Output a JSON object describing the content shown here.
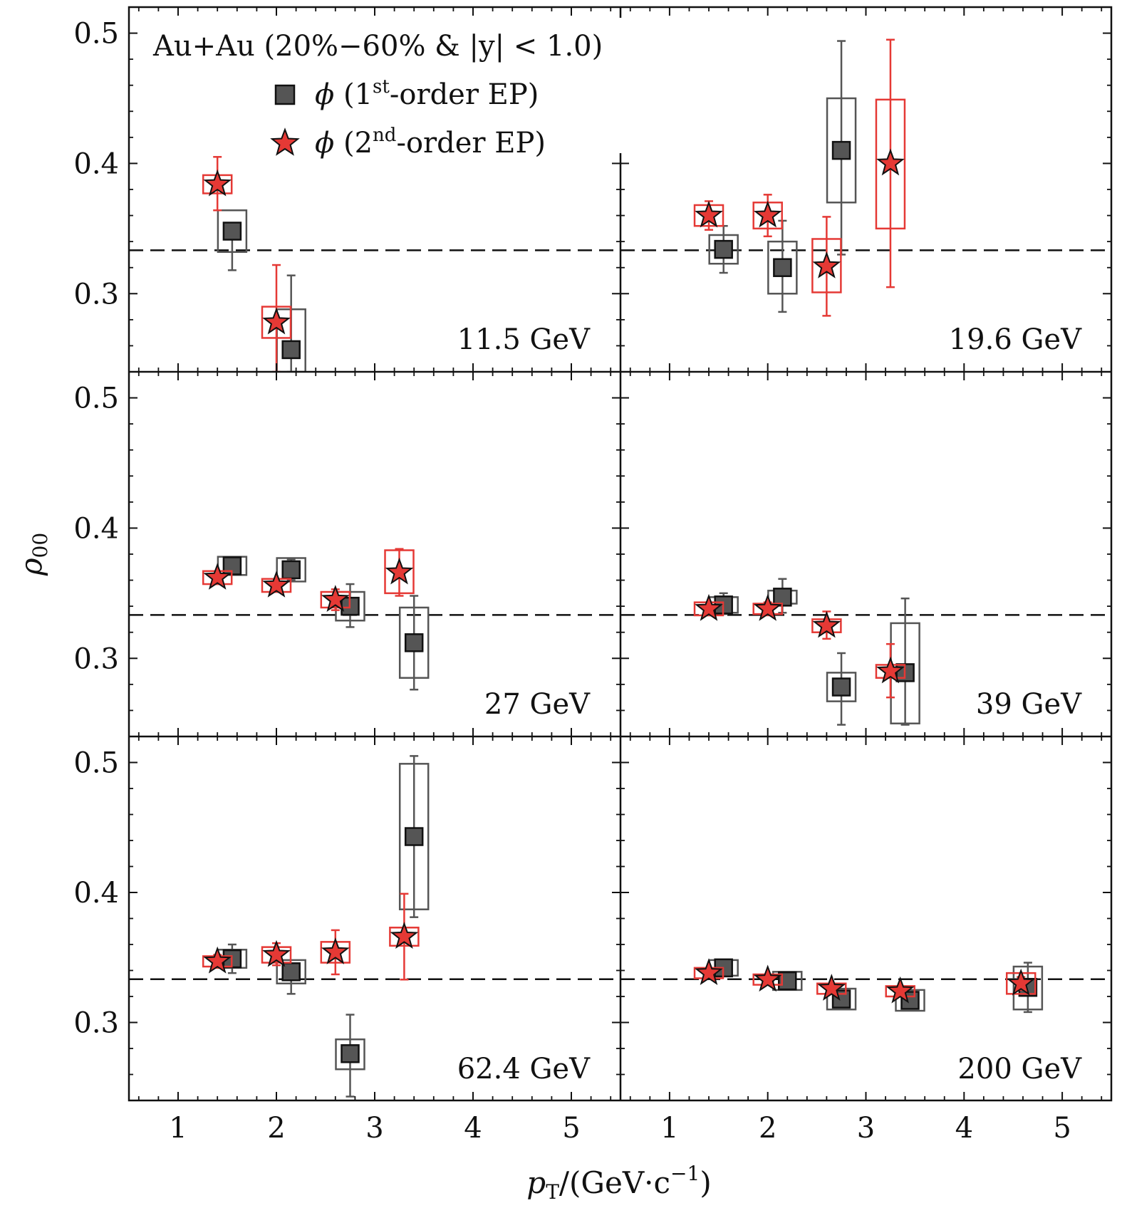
{
  "chart_data": {
    "type": "scatter",
    "layout": "3 rows x 2 columns, shared axes",
    "header": "Au+Au (20%−60% & |y| < 1.0)",
    "xlabel": "pT/(GeV·c⁻¹)",
    "ylabel": "ρ00",
    "xlim": [
      0.5,
      5.5
    ],
    "ylim": [
      0.24,
      0.52
    ],
    "x_ticks": [
      "1",
      "2",
      "3",
      "4",
      "5"
    ],
    "y_ticks": [
      "0.3",
      "0.4",
      "0.5"
    ],
    "reference_line": 0.3333,
    "legend": [
      {
        "name": "ϕ (1st-order EP)",
        "marker": "square",
        "sup": "st",
        "color": "#555555"
      },
      {
        "name": "ϕ (2nd-order EP)",
        "marker": "star",
        "sup": "nd",
        "color": "#e53935"
      }
    ],
    "panels": [
      {
        "energy": "11.5 GeV",
        "series": [
          {
            "name": "1st-order EP",
            "points": [
              {
                "x": 1.55,
                "y": 0.348,
                "err": [
                  0.318,
                  0.352
                ],
                "sys": [
                  0.332,
                  0.364
                ]
              },
              {
                "x": 2.15,
                "y": 0.257,
                "err": [
                  0.24,
                  0.314
                ],
                "sys": [
                  0.24,
                  0.288
                ]
              }
            ]
          },
          {
            "name": "2nd-order EP",
            "points": [
              {
                "x": 1.4,
                "y": 0.384,
                "err": [
                  0.364,
                  0.405
                ],
                "sys": [
                  0.377,
                  0.391
                ]
              },
              {
                "x": 2.0,
                "y": 0.278,
                "err": [
                  0.24,
                  0.322
                ],
                "sys": [
                  0.266,
                  0.29
                ]
              }
            ]
          }
        ]
      },
      {
        "energy": "19.6 GeV",
        "series": [
          {
            "name": "1st-order EP",
            "points": [
              {
                "x": 1.55,
                "y": 0.334,
                "err": [
                  0.316,
                  0.352
                ],
                "sys": [
                  0.323,
                  0.345
                ]
              },
              {
                "x": 2.15,
                "y": 0.32,
                "err": [
                  0.286,
                  0.356
                ],
                "sys": [
                  0.3,
                  0.34
                ]
              },
              {
                "x": 2.75,
                "y": 0.41,
                "err": [
                  0.33,
                  0.494
                ],
                "sys": [
                  0.37,
                  0.45
                ]
              }
            ]
          },
          {
            "name": "2nd-order EP",
            "points": [
              {
                "x": 1.4,
                "y": 0.36,
                "err": [
                  0.349,
                  0.371
                ],
                "sys": [
                  0.352,
                  0.368
                ]
              },
              {
                "x": 2.0,
                "y": 0.36,
                "err": [
                  0.344,
                  0.376
                ],
                "sys": [
                  0.35,
                  0.37
                ]
              },
              {
                "x": 2.6,
                "y": 0.321,
                "err": [
                  0.283,
                  0.359
                ],
                "sys": [
                  0.301,
                  0.342
                ]
              },
              {
                "x": 3.25,
                "y": 0.4,
                "err": [
                  0.305,
                  0.495
                ],
                "sys": [
                  0.35,
                  0.449
                ]
              }
            ]
          }
        ]
      },
      {
        "energy": "27 GeV",
        "series": [
          {
            "name": "1st-order EP",
            "points": [
              {
                "x": 1.55,
                "y": 0.371,
                "err": [
                  0.365,
                  0.377
                ],
                "sys": [
                  0.364,
                  0.378
                ]
              },
              {
                "x": 2.15,
                "y": 0.368,
                "err": [
                  0.36,
                  0.376
                ],
                "sys": [
                  0.359,
                  0.377
                ]
              },
              {
                "x": 2.75,
                "y": 0.34,
                "err": [
                  0.324,
                  0.357
                ],
                "sys": [
                  0.329,
                  0.351
                ]
              },
              {
                "x": 3.4,
                "y": 0.312,
                "err": [
                  0.276,
                  0.348
                ],
                "sys": [
                  0.285,
                  0.339
                ]
              }
            ]
          },
          {
            "name": "2nd-order EP",
            "points": [
              {
                "x": 1.4,
                "y": 0.362,
                "err": [
                  0.357,
                  0.367
                ],
                "sys": [
                  0.357,
                  0.367
                ]
              },
              {
                "x": 2.0,
                "y": 0.356,
                "err": [
                  0.351,
                  0.361
                ],
                "sys": [
                  0.351,
                  0.361
                ]
              },
              {
                "x": 2.6,
                "y": 0.345,
                "err": [
                  0.337,
                  0.353
                ],
                "sys": [
                  0.339,
                  0.351
                ]
              },
              {
                "x": 3.25,
                "y": 0.366,
                "err": [
                  0.348,
                  0.384
                ],
                "sys": [
                  0.35,
                  0.383
                ]
              }
            ]
          }
        ]
      },
      {
        "energy": "39 GeV",
        "series": [
          {
            "name": "1st-order EP",
            "points": [
              {
                "x": 1.55,
                "y": 0.341,
                "err": [
                  0.334,
                  0.35
                ],
                "sys": [
                  0.335,
                  0.347
                ]
              },
              {
                "x": 2.15,
                "y": 0.347,
                "err": [
                  0.335,
                  0.361
                ],
                "sys": [
                  0.342,
                  0.352
                ]
              },
              {
                "x": 2.75,
                "y": 0.278,
                "err": [
                  0.249,
                  0.304
                ],
                "sys": [
                  0.267,
                  0.289
                ]
              },
              {
                "x": 3.4,
                "y": 0.289,
                "err": [
                  0.249,
                  0.346
                ],
                "sys": [
                  0.25,
                  0.327
                ]
              }
            ]
          },
          {
            "name": "2nd-order EP",
            "points": [
              {
                "x": 1.4,
                "y": 0.338,
                "err": [
                  0.333,
                  0.343
                ],
                "sys": [
                  0.333,
                  0.343
                ]
              },
              {
                "x": 2.0,
                "y": 0.338,
                "err": [
                  0.333,
                  0.343
                ],
                "sys": [
                  0.334,
                  0.342
                ]
              },
              {
                "x": 2.6,
                "y": 0.325,
                "err": [
                  0.315,
                  0.336
                ],
                "sys": [
                  0.32,
                  0.33
                ]
              },
              {
                "x": 3.25,
                "y": 0.29,
                "err": [
                  0.27,
                  0.311
                ],
                "sys": [
                  0.285,
                  0.295
                ]
              }
            ]
          }
        ]
      },
      {
        "energy": "62.4 GeV",
        "series": [
          {
            "name": "1st-order EP",
            "points": [
              {
                "x": 1.55,
                "y": 0.349,
                "err": [
                  0.338,
                  0.36
                ],
                "sys": [
                  0.342,
                  0.356
                ]
              },
              {
                "x": 2.15,
                "y": 0.339,
                "err": [
                  0.322,
                  0.345
                ],
                "sys": [
                  0.33,
                  0.348
                ]
              },
              {
                "x": 2.75,
                "y": 0.276,
                "err": [
                  0.243,
                  0.306
                ],
                "sys": [
                  0.264,
                  0.287
                ]
              },
              {
                "x": 3.4,
                "y": 0.443,
                "err": [
                  0.381,
                  0.505
                ],
                "sys": [
                  0.387,
                  0.499
                ]
              }
            ]
          },
          {
            "name": "2nd-order EP",
            "points": [
              {
                "x": 1.4,
                "y": 0.347,
                "err": [
                  0.342,
                  0.352
                ],
                "sys": [
                  0.343,
                  0.351
                ]
              },
              {
                "x": 2.0,
                "y": 0.352,
                "err": [
                  0.344,
                  0.361
                ],
                "sys": [
                  0.346,
                  0.358
                ]
              },
              {
                "x": 2.6,
                "y": 0.354,
                "err": [
                  0.337,
                  0.371
                ],
                "sys": [
                  0.346,
                  0.362
                ]
              },
              {
                "x": 3.3,
                "y": 0.366,
                "err": [
                  0.333,
                  0.399
                ],
                "sys": [
                  0.359,
                  0.373
                ]
              }
            ]
          }
        ]
      },
      {
        "energy": "200 GeV",
        "series": [
          {
            "name": "1st-order EP",
            "points": [
              {
                "x": 1.55,
                "y": 0.342,
                "err": [
                  0.338,
                  0.346
                ],
                "sys": [
                  0.336,
                  0.348
                ]
              },
              {
                "x": 2.2,
                "y": 0.332,
                "err": [
                  0.328,
                  0.336
                ],
                "sys": [
                  0.325,
                  0.339
                ]
              },
              {
                "x": 2.75,
                "y": 0.318,
                "err": [
                  0.314,
                  0.322
                ],
                "sys": [
                  0.31,
                  0.326
                ]
              },
              {
                "x": 3.45,
                "y": 0.317,
                "err": [
                  0.313,
                  0.321
                ],
                "sys": [
                  0.309,
                  0.325
                ]
              },
              {
                "x": 4.65,
                "y": 0.327,
                "err": [
                  0.308,
                  0.346
                ],
                "sys": [
                  0.31,
                  0.343
                ]
              }
            ]
          },
          {
            "name": "2nd-order EP",
            "points": [
              {
                "x": 1.4,
                "y": 0.338,
                "err": [
                  0.336,
                  0.34
                ],
                "sys": [
                  0.334,
                  0.342
                ]
              },
              {
                "x": 2.0,
                "y": 0.333,
                "err": [
                  0.331,
                  0.335
                ],
                "sys": [
                  0.329,
                  0.337
                ]
              },
              {
                "x": 2.65,
                "y": 0.326,
                "err": [
                  0.324,
                  0.328
                ],
                "sys": [
                  0.322,
                  0.33
                ]
              },
              {
                "x": 3.35,
                "y": 0.324,
                "err": [
                  0.322,
                  0.326
                ],
                "sys": [
                  0.32,
                  0.328
                ]
              },
              {
                "x": 4.58,
                "y": 0.33,
                "err": [
                  0.325,
                  0.335
                ],
                "sys": [
                  0.322,
                  0.338
                ]
              }
            ]
          }
        ]
      }
    ]
  }
}
